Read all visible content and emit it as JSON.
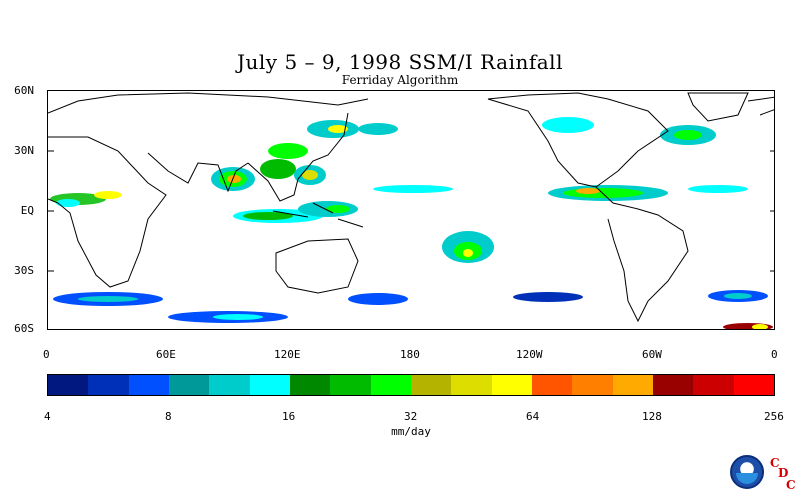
{
  "title": "July 5 – 9, 1998 SSM/I Rainfall",
  "subtitle": "Ferriday Algorithm",
  "lat_labels": [
    "60N",
    "30N",
    "EQ",
    "30S",
    "60S"
  ],
  "lon_labels": [
    "0",
    "60E",
    "120E",
    "180",
    "120W",
    "60W",
    "0"
  ],
  "colorbar": {
    "colors": [
      "#001880",
      "#0030b8",
      "#0050ff",
      "#009999",
      "#00cccc",
      "#00ffff",
      "#008800",
      "#00bb00",
      "#00ff00",
      "#b3b300",
      "#dddd00",
      "#ffff00",
      "#ff5500",
      "#ff8000",
      "#ffaa00",
      "#990000",
      "#cc0000",
      "#ff0000"
    ],
    "tick_labels": [
      "4",
      "8",
      "16",
      "32",
      "64",
      "128",
      "256"
    ],
    "units": "mm/day"
  },
  "logo": {
    "name": "NOAA",
    "cdc_letters": [
      "C",
      "D",
      "C"
    ]
  }
}
